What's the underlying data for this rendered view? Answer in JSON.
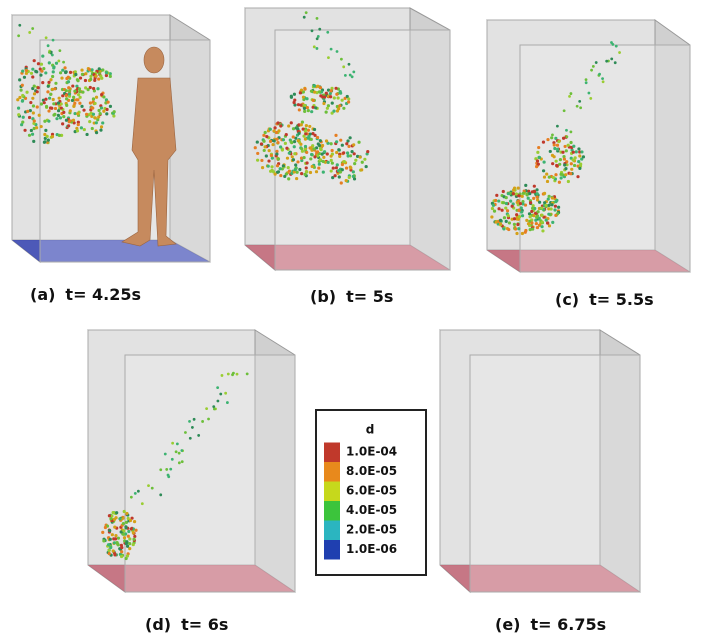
{
  "panels": [
    {
      "label": "(a)",
      "time": "t= 4.25s"
    },
    {
      "label": "(b)",
      "time": "t= 5s"
    },
    {
      "label": "(c)",
      "time": "t= 5.5s"
    },
    {
      "label": "(d)",
      "time": "t= 6s"
    },
    {
      "label": "(e)",
      "time": "t= 6.75s"
    }
  ],
  "legend": {
    "title": "d",
    "labels": [
      "1.0E-04",
      "8.0E-05",
      "6.0E-05",
      "4.0E-05",
      "2.0E-05",
      "1.0E-06"
    ]
  }
}
